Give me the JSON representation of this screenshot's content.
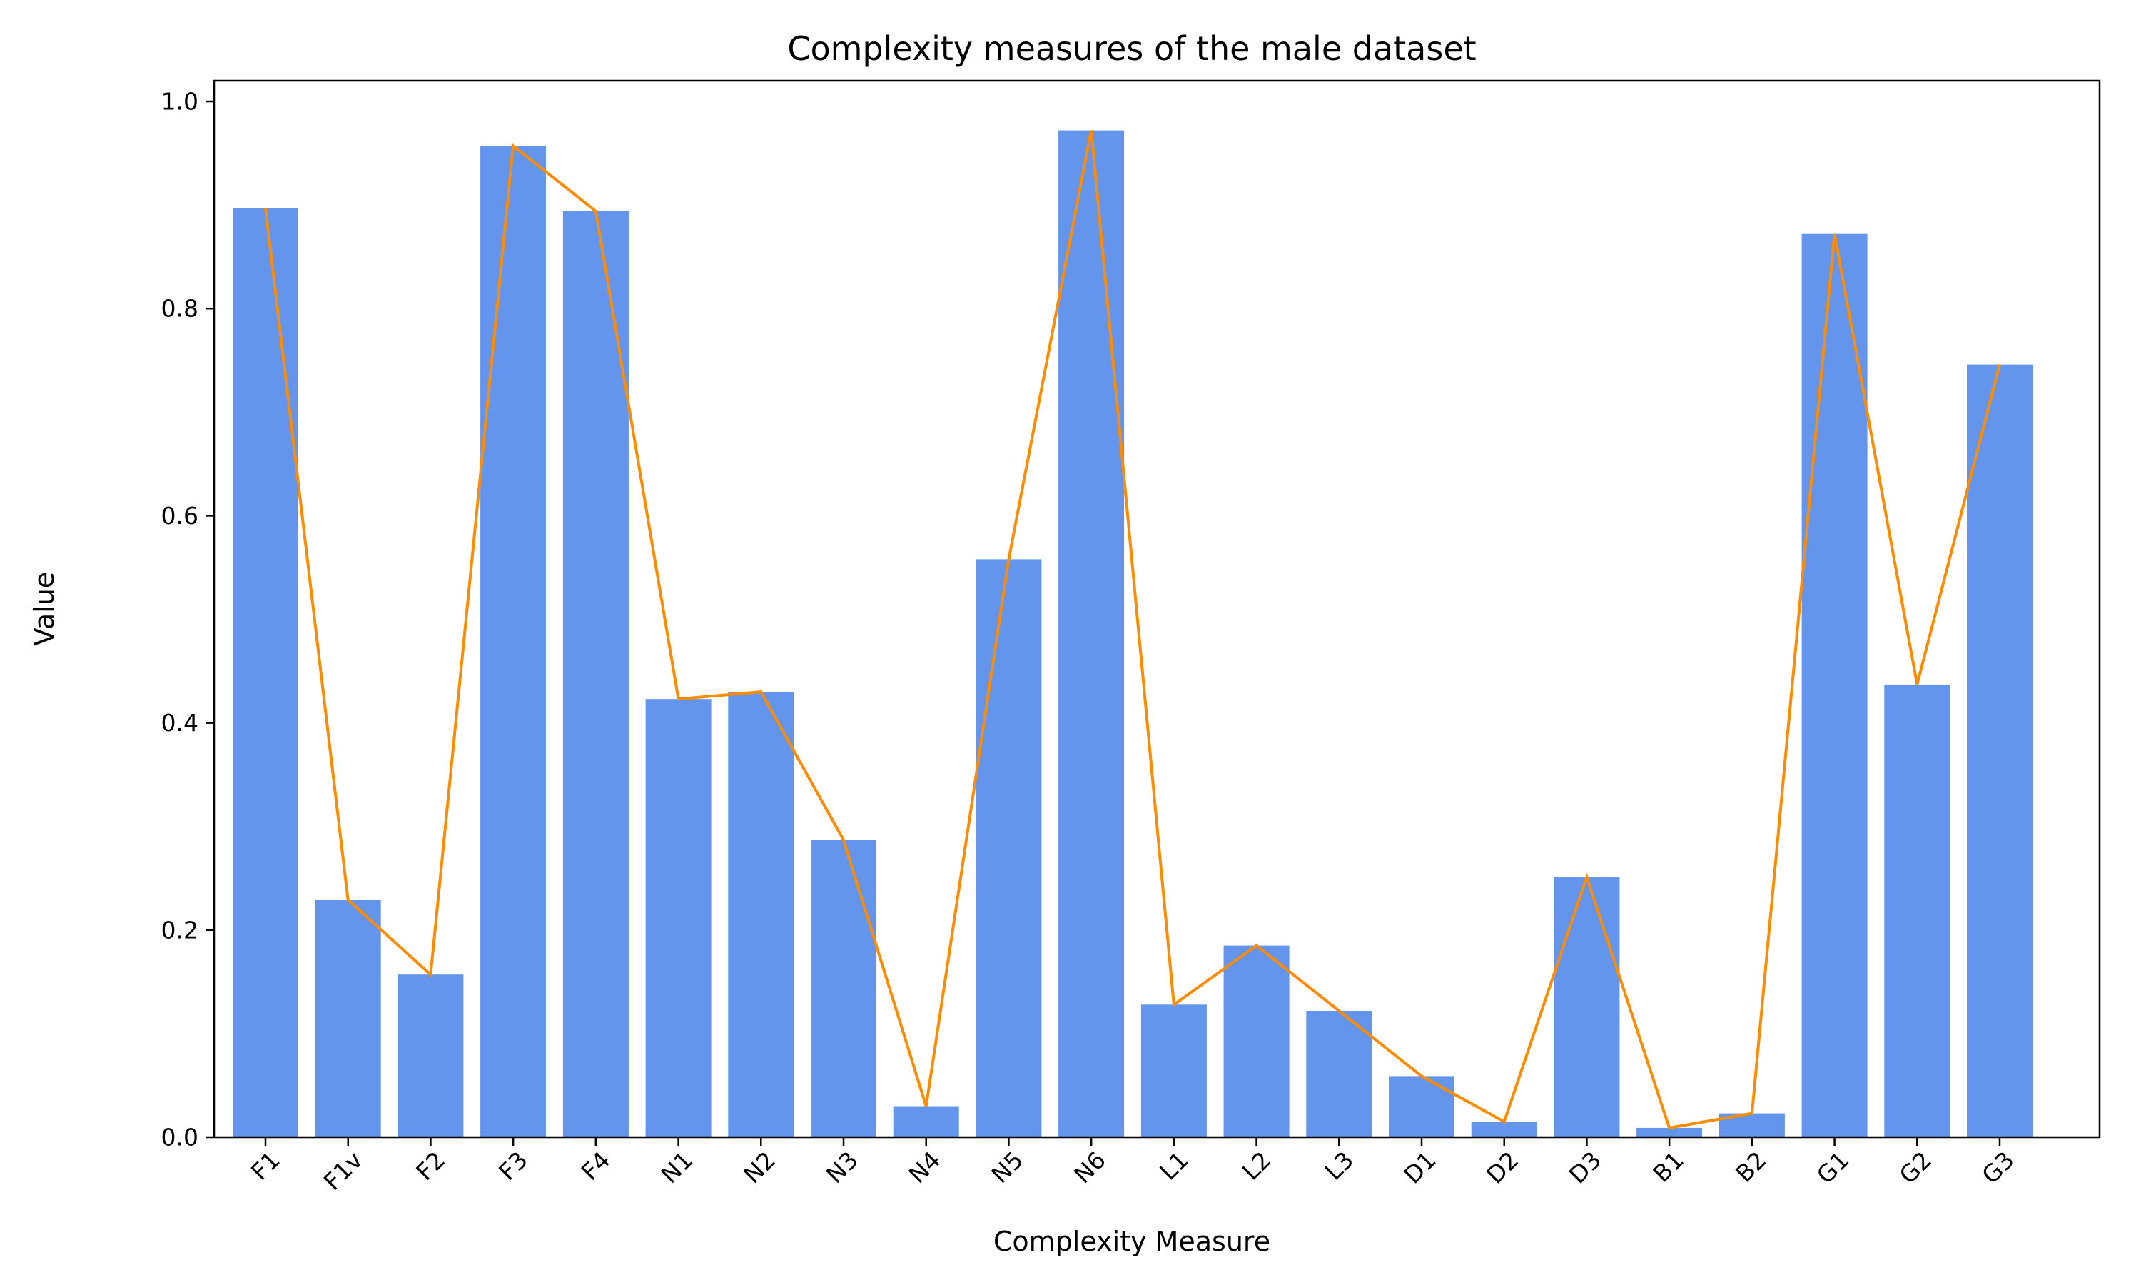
{
  "chart_data": {
    "type": "bar",
    "title": "Complexity measures of the male dataset",
    "xlabel": "Complexity Measure",
    "ylabel": "Value",
    "ylim": [
      0,
      1.02
    ],
    "yticks": [
      0.0,
      0.2,
      0.4,
      0.6,
      0.8,
      1.0
    ],
    "ytick_labels": [
      "0.0",
      "0.2",
      "0.4",
      "0.6",
      "0.8",
      "1.0"
    ],
    "grid": false,
    "legend": "none",
    "bar_color": "#6495ED",
    "line_color": "#FF8C00",
    "categories": [
      "F1",
      "F1v",
      "F2",
      "F3",
      "F4",
      "N1",
      "N2",
      "N3",
      "N4",
      "N5",
      "N6",
      "L1",
      "L2",
      "L3",
      "D1",
      "D2",
      "D3",
      "B1",
      "B2",
      "G1",
      "G2",
      "G3"
    ],
    "values": [
      0.897,
      0.229,
      0.157,
      0.957,
      0.894,
      0.423,
      0.43,
      0.287,
      0.03,
      0.558,
      0.972,
      0.128,
      0.185,
      0.122,
      0.059,
      0.015,
      0.251,
      0.009,
      0.023,
      0.872,
      0.437,
      0.746
    ],
    "overlay_line": true
  }
}
